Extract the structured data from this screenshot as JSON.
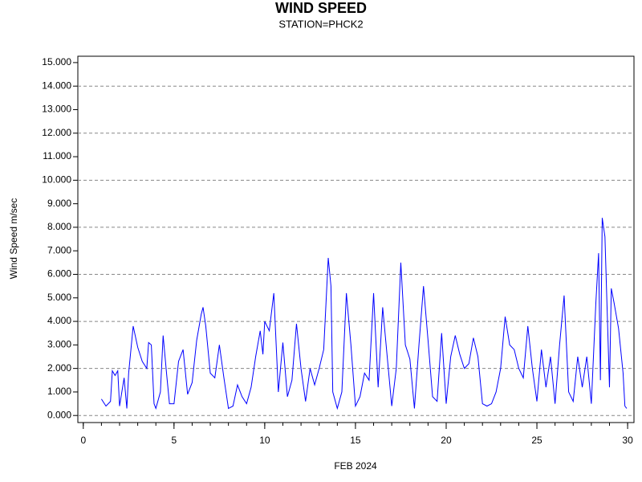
{
  "chart_data": {
    "type": "line",
    "title": "WIND SPEED",
    "subtitle": "STATION=PHCK2",
    "x_label": "FEB 2024",
    "y_label": "Wind Speed m/sec",
    "xlim": [
      -0.3,
      30.35
    ],
    "ylim": [
      -0.3,
      15.27
    ],
    "xticks": [
      0,
      5,
      10,
      15,
      20,
      25,
      30
    ],
    "xminorticks": [
      0,
      1,
      2,
      3,
      4,
      5,
      6,
      7,
      8,
      9,
      10,
      11,
      12,
      13,
      14,
      15,
      16,
      17,
      18,
      19,
      20,
      21,
      22,
      23,
      24,
      25,
      26,
      27,
      28,
      29,
      30
    ],
    "yticks": [
      {
        "value": 0,
        "label": "0.000"
      },
      {
        "value": 1,
        "label": "1.000"
      },
      {
        "value": 2,
        "label": "2.000"
      },
      {
        "value": 3,
        "label": "3.000"
      },
      {
        "value": 4,
        "label": "4.000"
      },
      {
        "value": 5,
        "label": "5.000"
      },
      {
        "value": 6,
        "label": "6.000"
      },
      {
        "value": 7,
        "label": "7.000"
      },
      {
        "value": 8,
        "label": "8.000"
      },
      {
        "value": 9,
        "label": "9.000"
      },
      {
        "value": 10,
        "label": "10.000"
      },
      {
        "value": 11,
        "label": "11.000"
      },
      {
        "value": 12,
        "label": "12.000"
      },
      {
        "value": 13,
        "label": "13.000"
      },
      {
        "value": 14,
        "label": "14.000"
      },
      {
        "value": 15,
        "label": "15.000"
      }
    ],
    "gridlines": [
      0,
      2,
      4,
      6,
      8,
      10,
      12,
      14
    ],
    "color": "#0000ff",
    "x": [
      1.0,
      1.25,
      1.5,
      1.6,
      1.75,
      1.9,
      2.0,
      2.25,
      2.4,
      2.5,
      2.75,
      3.0,
      3.25,
      3.5,
      3.6,
      3.75,
      3.9,
      4.0,
      4.25,
      4.4,
      4.6,
      4.75,
      5.0,
      5.25,
      5.5,
      5.75,
      6.0,
      6.25,
      6.5,
      6.6,
      6.75,
      7.0,
      7.25,
      7.5,
      7.75,
      8.0,
      8.25,
      8.5,
      8.75,
      9.0,
      9.25,
      9.5,
      9.75,
      9.9,
      10.0,
      10.25,
      10.5,
      10.75,
      11.0,
      11.25,
      11.5,
      11.75,
      12.0,
      12.25,
      12.5,
      12.75,
      13.0,
      13.25,
      13.5,
      13.65,
      13.75,
      14.0,
      14.25,
      14.5,
      14.75,
      15.0,
      15.25,
      15.5,
      15.75,
      16.0,
      16.25,
      16.5,
      16.75,
      17.0,
      17.25,
      17.5,
      17.75,
      18.0,
      18.25,
      18.5,
      18.75,
      19.0,
      19.25,
      19.5,
      19.75,
      20.0,
      20.25,
      20.5,
      20.75,
      21.0,
      21.25,
      21.5,
      21.75,
      22.0,
      22.25,
      22.5,
      22.75,
      23.0,
      23.25,
      23.5,
      23.75,
      24.0,
      24.25,
      24.5,
      24.75,
      25.0,
      25.25,
      25.5,
      25.75,
      26.0,
      26.25,
      26.5,
      26.75,
      27.0,
      27.25,
      27.5,
      27.75,
      28.0,
      28.25,
      28.4,
      28.5,
      28.6,
      28.75,
      29.0,
      29.1,
      29.25,
      29.5,
      29.75,
      29.85,
      29.95
    ],
    "values": [
      0.7,
      0.4,
      0.6,
      1.9,
      1.7,
      1.9,
      0.4,
      1.6,
      0.3,
      1.8,
      3.8,
      2.9,
      2.3,
      2.0,
      3.1,
      3.0,
      0.5,
      0.3,
      1.0,
      3.4,
      1.7,
      0.5,
      0.5,
      2.3,
      2.8,
      0.9,
      1.4,
      3.2,
      4.3,
      4.6,
      3.8,
      1.8,
      1.6,
      3.0,
      1.6,
      0.3,
      0.4,
      1.3,
      0.8,
      0.5,
      1.2,
      2.5,
      3.6,
      2.6,
      4.0,
      3.6,
      5.2,
      1.0,
      3.1,
      0.8,
      1.5,
      3.9,
      2.0,
      0.6,
      2.0,
      1.3,
      2.0,
      2.8,
      6.7,
      5.5,
      1.0,
      0.3,
      1.0,
      5.2,
      3.0,
      0.4,
      0.8,
      1.8,
      1.5,
      5.2,
      1.2,
      4.6,
      2.5,
      0.4,
      2.0,
      6.5,
      3.0,
      2.4,
      0.3,
      3.0,
      5.5,
      3.2,
      0.8,
      0.6,
      3.5,
      0.5,
      2.5,
      3.4,
      2.6,
      2.0,
      2.2,
      3.3,
      2.5,
      0.5,
      0.4,
      0.5,
      1.0,
      2.0,
      4.2,
      3.0,
      2.8,
      2.0,
      1.6,
      3.8,
      2.0,
      0.6,
      2.8,
      1.2,
      2.5,
      0.5,
      3.0,
      5.1,
      1.0,
      0.6,
      2.5,
      1.2,
      2.5,
      0.5,
      4.8,
      6.9,
      1.5,
      8.4,
      7.6,
      1.2,
      5.4,
      4.8,
      3.7,
      1.8,
      0.4,
      0.3
    ]
  }
}
